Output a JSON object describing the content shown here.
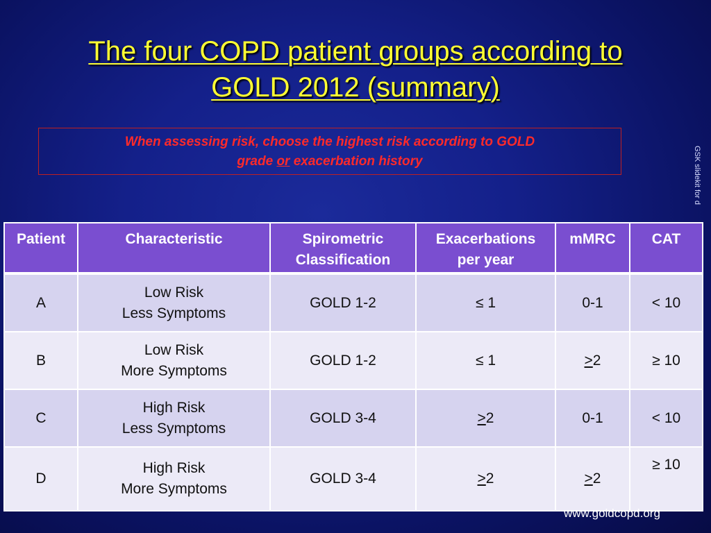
{
  "title": {
    "line1": "The four COPD patient groups according to",
    "line2": "GOLD 2012 (summary)"
  },
  "note": {
    "part1": "When assessing risk, choose the highest risk according to GOLD",
    "part2": "grade ",
    "or": "or",
    "part3": " exacerbation history"
  },
  "sidenote": "GSK slidekit for d",
  "table": {
    "headers": {
      "patient": "Patient",
      "characteristic": "Characteristic",
      "spirometric_1": "Spirometric",
      "spirometric_2": "Classification",
      "exacerbations_1": "Exacerbations",
      "exacerbations_2": "per year",
      "mmrc": "mMRC",
      "cat": "CAT"
    },
    "rows": [
      {
        "patient": "A",
        "char1": "Low Risk",
        "char2": "Less Symptoms",
        "spiro": "GOLD 1-2",
        "exac_sym": "≤",
        "exac_num": "1",
        "mmrc_sym": "",
        "mmrc_num": "0-1",
        "cat": "< 10"
      },
      {
        "patient": "B",
        "char1": "Low Risk",
        "char2": "More Symptoms",
        "spiro": "GOLD 1-2",
        "exac_sym": "≤",
        "exac_num": "1",
        "mmrc_sym": ">",
        "mmrc_num": "2",
        "cat": "≥ 10"
      },
      {
        "patient": "C",
        "char1": "High Risk",
        "char2": "Less Symptoms",
        "spiro": "GOLD 3-4",
        "exac_sym": ">",
        "exac_num": "2",
        "mmrc_sym": "",
        "mmrc_num": "0-1",
        "cat": "< 10"
      },
      {
        "patient": "D",
        "char1": "High Risk",
        "char2": "More Symptoms",
        "spiro": "GOLD 3-4",
        "exac_sym": ">",
        "exac_num": "2",
        "mmrc_sym": ">",
        "mmrc_num": "2",
        "cat": "≥ 10"
      }
    ]
  },
  "footer": {
    "url": "www.goldcopd.org"
  },
  "colors": {
    "background": "#14208a",
    "title": "#ffff33",
    "note_text": "#ff2a2a",
    "header_bg": "#7a4ed0",
    "row_odd": "#d6d3ef",
    "row_even": "#eceaf7"
  }
}
